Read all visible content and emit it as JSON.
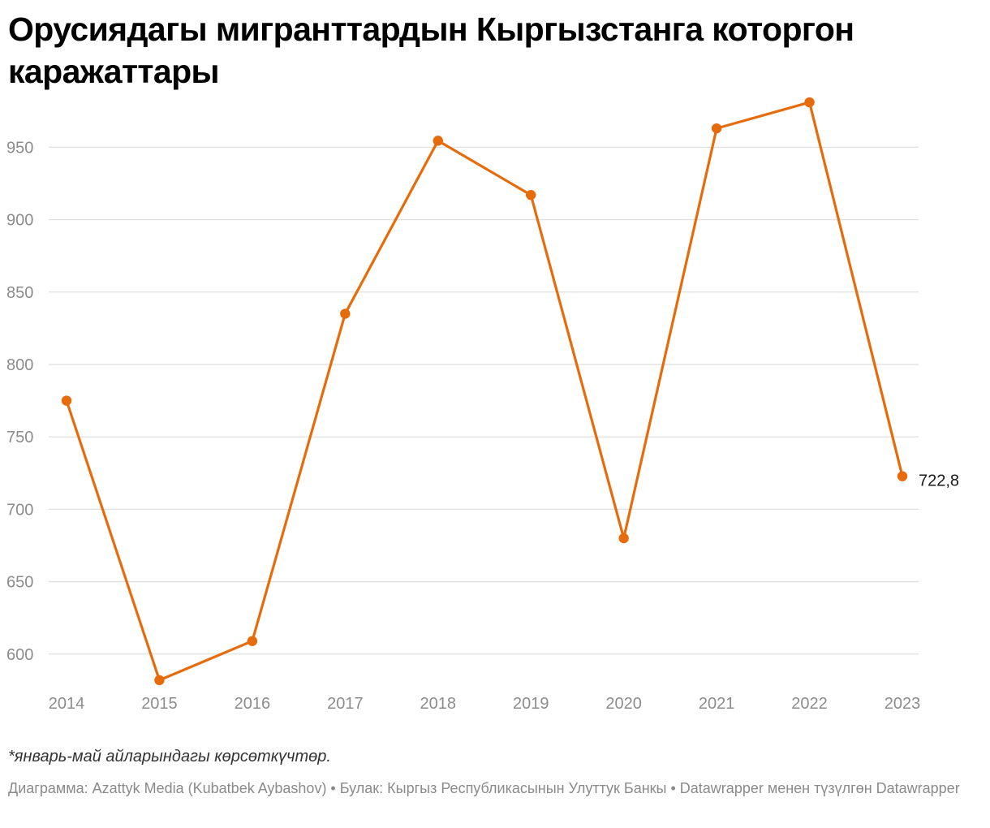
{
  "title": "Орусиядагы мигранттардын Кыргызстанга которгон каражаттары",
  "note": "*январь-май айларындагы көрсөткүчтөр.",
  "footer": "Диаграмма: Azattyk Media (Kubatbek Aybashov) • Булак: Кыргыз Республикасынын Улуттук Банкы • Datawrapper менен түзүлгөн Datawrapper",
  "colors": {
    "line": "#e66b0b",
    "grid": "#e0e0e0",
    "tick_text": "#8c8c8c"
  },
  "chart_data": {
    "type": "line",
    "title": "Орусиядагы мигранттардын Кыргызстанга которгон каражаттары",
    "xlabel": "",
    "ylabel": "",
    "grid": true,
    "ylim": [
      578,
      990
    ],
    "yticks": [
      600,
      650,
      700,
      750,
      800,
      850,
      900,
      950
    ],
    "categories": [
      "2014",
      "2015",
      "2016",
      "2017",
      "2018",
      "2019",
      "2020",
      "2021",
      "2022",
      "2023"
    ],
    "series": [
      {
        "values": [
          775.0,
          582.0,
          609.0,
          835.0,
          954.5,
          917.0,
          680.0,
          963.0,
          981.0,
          722.8
        ]
      }
    ],
    "annotations": [
      {
        "category": "2023",
        "text": "722,8"
      }
    ]
  }
}
